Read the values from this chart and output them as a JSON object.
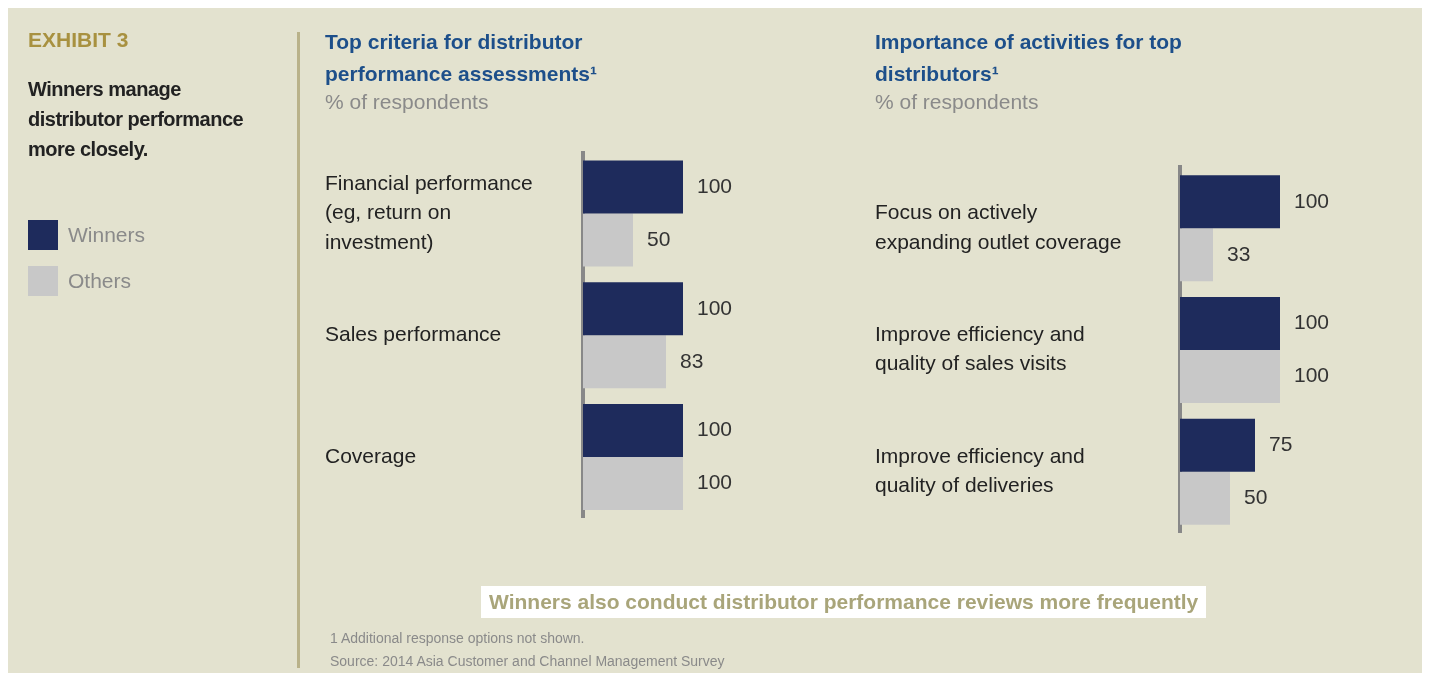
{
  "chart_data": [
    {
      "type": "other",
      "title": "EXHIBIT 3",
      "subtitle": "Winners manage distributor performance more closely."
    },
    {
      "type": "bar",
      "orientation": "horizontal",
      "title": "Top criteria for distributor performance assessments¹",
      "subtitle": "% of respondents",
      "categories": [
        "Financial performance (eg, return on investment)",
        "Sales performance",
        "Coverage"
      ],
      "series": [
        {
          "name": "Winners",
          "color": "#1e2b5c",
          "values": [
            100,
            100,
            100
          ]
        },
        {
          "name": "Others",
          "color": "#c8c8c8",
          "values": [
            50,
            83,
            100
          ]
        }
      ],
      "xlim": [
        0,
        100
      ],
      "data_labels": true,
      "legend": "left",
      "tick_labels": "y",
      "annotations": [
        "Winners also conduct distributor performance reviews more frequently",
        "1  Additional response options not shown.",
        "Source: 2014 Asia Customer and Channel Management Survey"
      ]
    },
    {
      "type": "bar",
      "orientation": "horizontal",
      "title": "Importance of activities for top distributors¹",
      "subtitle": "% of respondents",
      "categories": [
        "Focus on actively expanding outlet coverage",
        "Improve efficiency and quality of sales visits",
        "Improve efficiency and quality of deliveries"
      ],
      "series": [
        {
          "color": "#1e2b5c",
          "values": [
            100,
            100,
            75
          ]
        },
        {
          "color": "#c8c8c8",
          "values": [
            33,
            100,
            50
          ]
        }
      ],
      "xlim": [
        0,
        100
      ],
      "data_labels": true,
      "tick_labels": "y"
    }
  ]
}
